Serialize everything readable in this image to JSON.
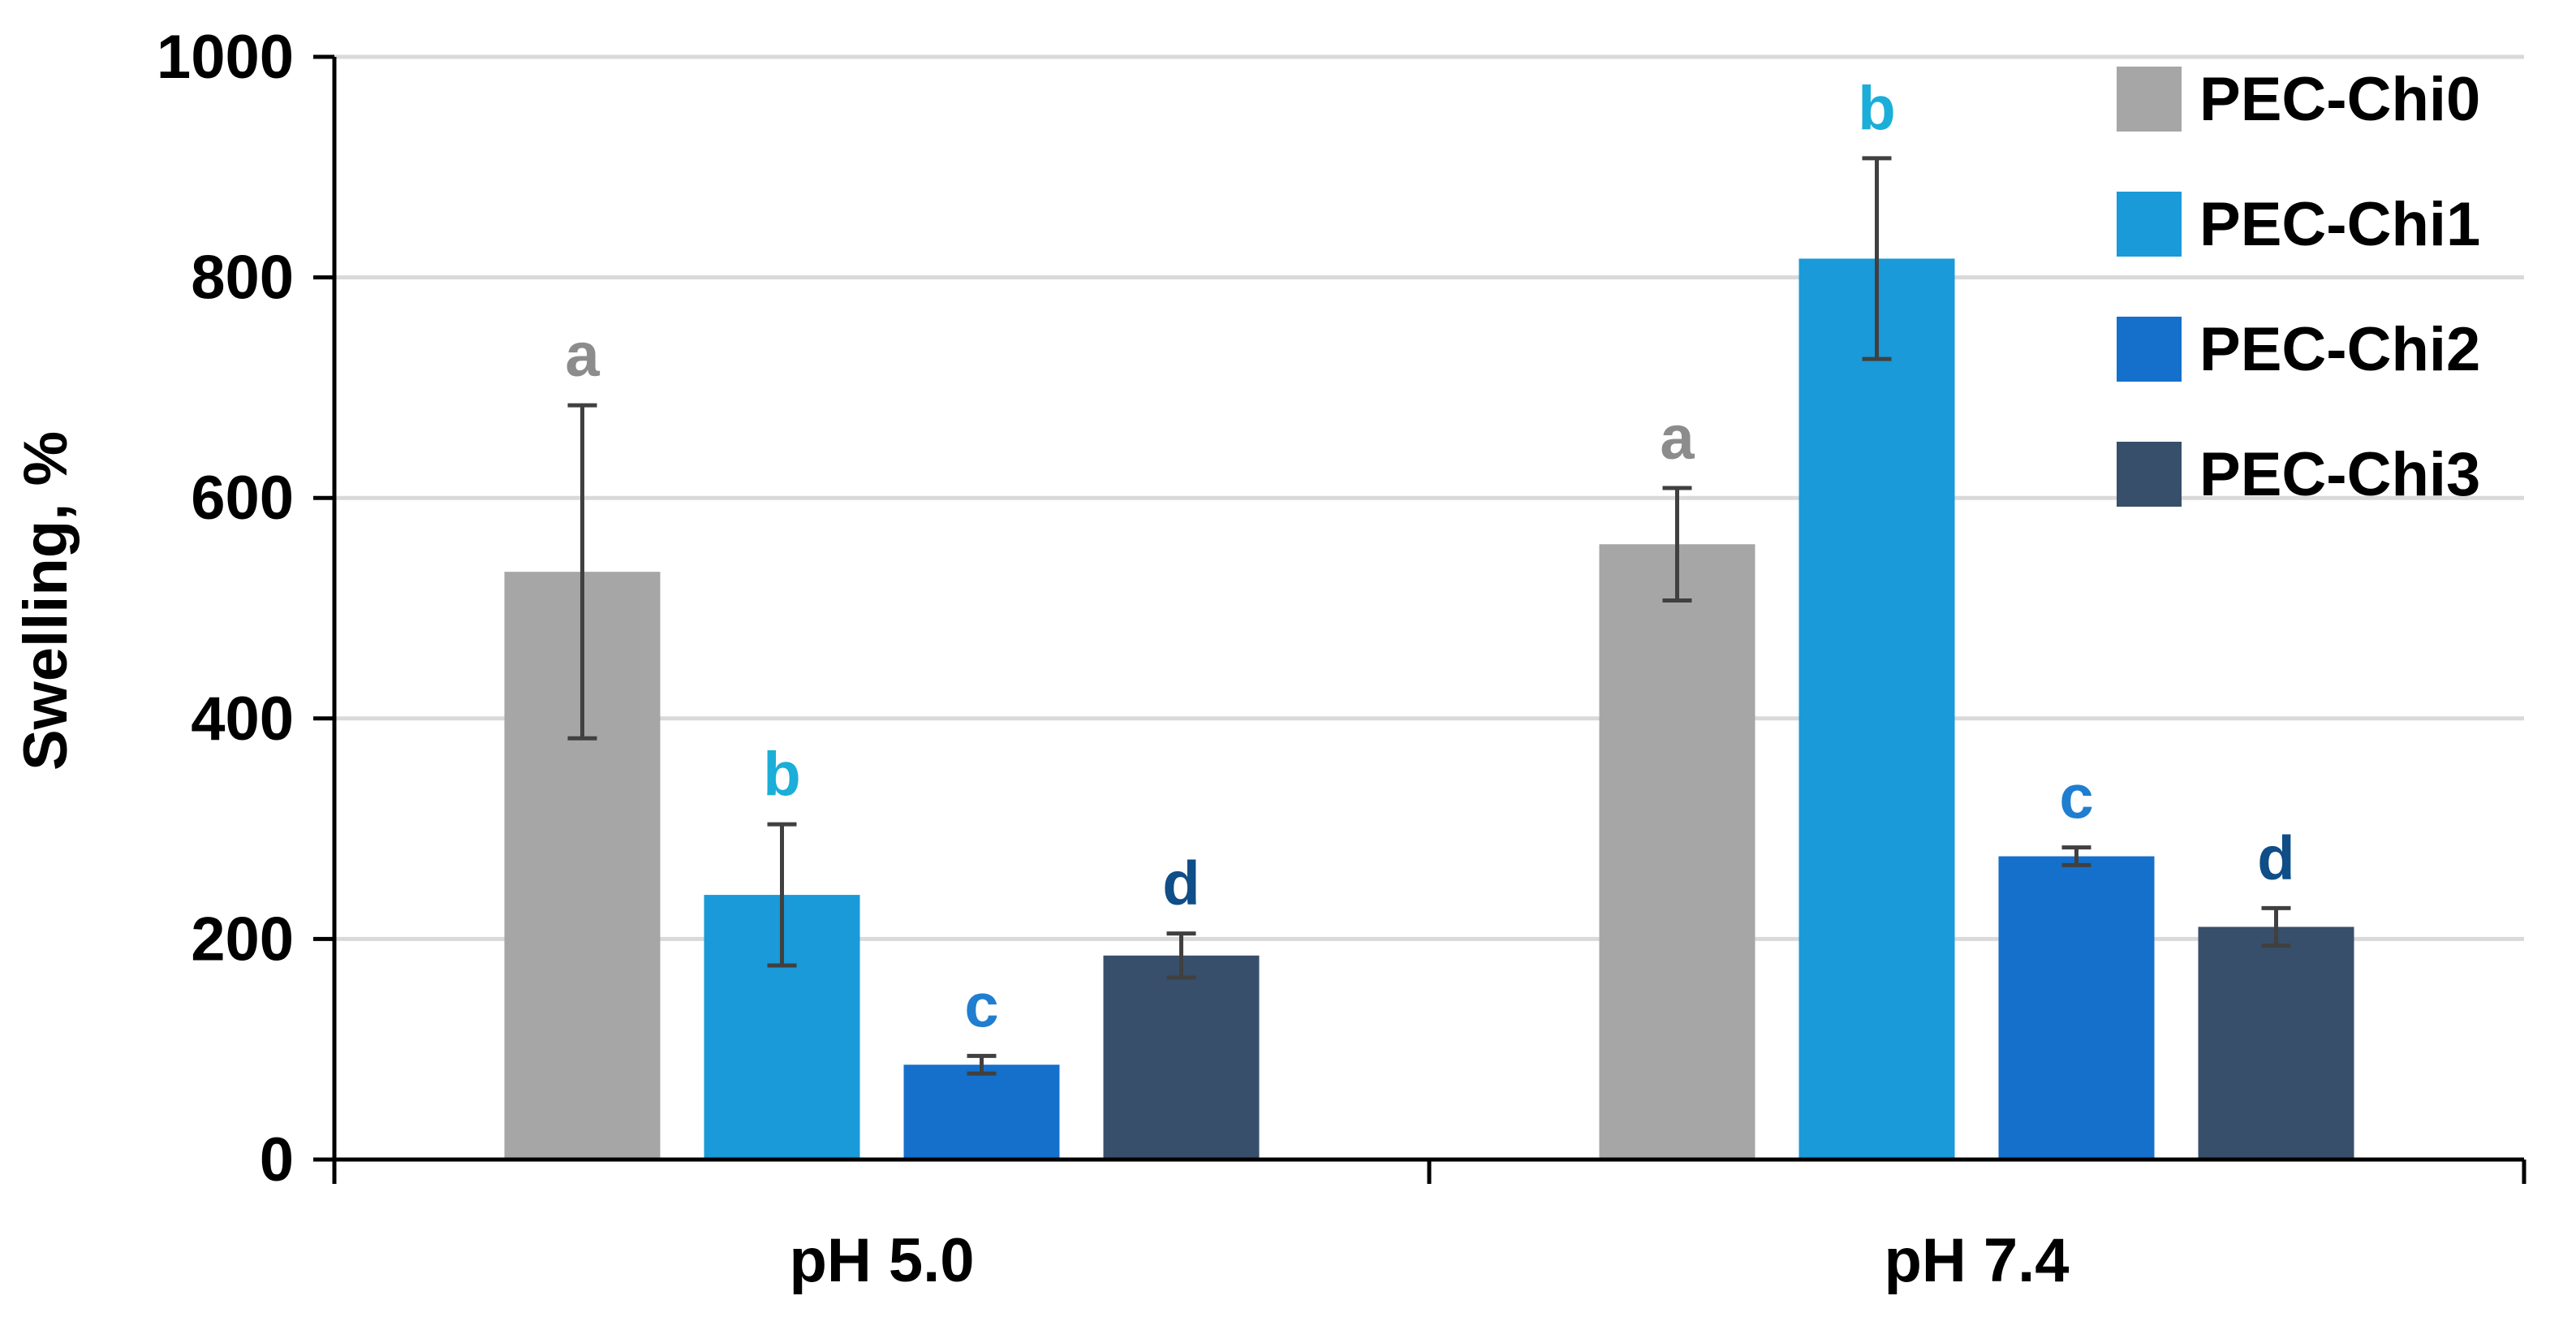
{
  "chart_data": {
    "type": "bar",
    "title": "",
    "xlabel": "",
    "ylabel": "Swelling, %",
    "ylim": [
      0,
      1000
    ],
    "yticks": [
      0,
      200,
      400,
      600,
      800,
      1000
    ],
    "grid": true,
    "legend_position": "top-right",
    "categories": [
      "pH 5.0",
      "pH 7.4"
    ],
    "series": [
      {
        "name": "PEC-Chi0",
        "color": "#a6a6a6",
        "label_color": "#8c8c8c",
        "values": [
          533,
          558
        ],
        "errors": [
          151,
          51
        ],
        "group_letters": [
          "a",
          "a"
        ]
      },
      {
        "name": "PEC-Chi1",
        "color": "#1a9ad8",
        "label_color": "#1aaed8",
        "values": [
          240,
          817
        ],
        "errors": [
          64,
          91
        ],
        "group_letters": [
          "b",
          "b"
        ]
      },
      {
        "name": "PEC-Chi2",
        "color": "#1570cb",
        "label_color": "#1f7ed0",
        "values": [
          86,
          275
        ],
        "errors": [
          8,
          8
        ],
        "group_letters": [
          "c",
          "c"
        ]
      },
      {
        "name": "PEC-Chi3",
        "color": "#374f6a",
        "label_color": "#0f4e87",
        "values": [
          185,
          211
        ],
        "errors": [
          20,
          17
        ],
        "group_letters": [
          "d",
          "d"
        ]
      }
    ]
  }
}
